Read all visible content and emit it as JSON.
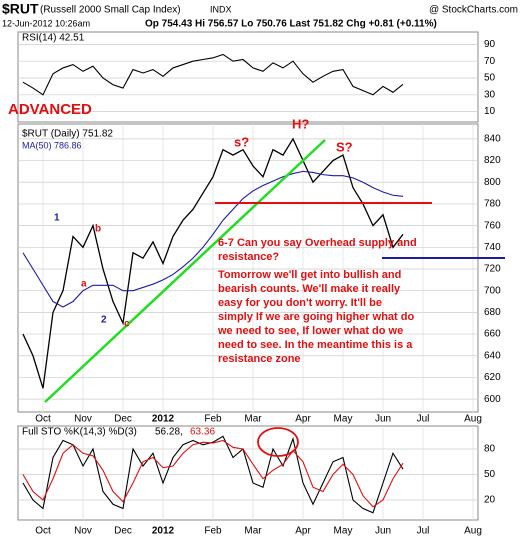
{
  "header": {
    "symbol": "$RUT",
    "name": "(Russell 2000 Small Cap Index)",
    "exchange": "INDX",
    "date": "12-Jun-2012 10:26am",
    "quote": "Op 754.43 Hi 756.57 Lo 750.76 Last 751.82 Chg +0.81 (+0.11%)",
    "source": "@ StockCharts.com"
  },
  "chart_data": [
    {
      "type": "line",
      "ylim": [
        0,
        100
      ],
      "yticks": [
        90,
        70,
        50,
        30,
        10
      ],
      "grid": true,
      "series": [
        {
          "name": "RSI(14) 42.51",
          "color": "#000000",
          "values": [
            45,
            38,
            30,
            55,
            62,
            66,
            58,
            64,
            50,
            42,
            38,
            60,
            56,
            60,
            52,
            62,
            66,
            70,
            72,
            74,
            78,
            70,
            72,
            62,
            58,
            68,
            62,
            70,
            55,
            45,
            52,
            58,
            60,
            40,
            35,
            30,
            40,
            33,
            42.51,
            null,
            null,
            null,
            null,
            null,
            null,
            null
          ]
        }
      ]
    },
    {
      "type": "line",
      "ylim": [
        590,
        850
      ],
      "yticks": [
        600,
        620,
        640,
        660,
        680,
        700,
        720,
        740,
        760,
        780,
        800,
        820,
        840
      ],
      "grid": true,
      "categories": [
        null,
        null,
        "Oct",
        null,
        null,
        null,
        "Nov",
        null,
        null,
        null,
        "Dec",
        null,
        null,
        null,
        "2012",
        null,
        null,
        null,
        null,
        "Feb",
        null,
        null,
        null,
        "Mar",
        null,
        null,
        null,
        null,
        "Apr",
        null,
        null,
        null,
        "May",
        null,
        null,
        null,
        "Jun",
        null,
        null,
        null,
        "Jul",
        null,
        null,
        null,
        null,
        "Aug"
      ],
      "series": [
        {
          "name": "$RUT (Daily) 751.82",
          "color": "#000000",
          "values": [
            660,
            640,
            610,
            680,
            700,
            750,
            740,
            760,
            720,
            690,
            670,
            735,
            730,
            745,
            725,
            750,
            765,
            775,
            790,
            805,
            830,
            825,
            830,
            815,
            805,
            830,
            825,
            840,
            820,
            800,
            810,
            820,
            825,
            795,
            780,
            760,
            770,
            740,
            752,
            null,
            null,
            null,
            null,
            null,
            null,
            null
          ]
        },
        {
          "name": "MA(50) 786.86",
          "color": "#1c1ca8",
          "values": [
            735,
            720,
            705,
            690,
            685,
            690,
            700,
            705,
            705,
            705,
            700,
            700,
            703,
            706,
            710,
            715,
            722,
            730,
            740,
            752,
            765,
            775,
            785,
            792,
            797,
            801,
            805,
            808,
            810,
            809,
            807,
            806,
            806,
            804,
            800,
            795,
            791,
            788,
            787,
            null,
            null,
            null,
            null,
            null,
            null,
            null
          ]
        }
      ],
      "annotations": [
        "ADVANCED",
        "s?",
        "H?",
        "S?",
        "1",
        "b",
        "a",
        "2",
        "c",
        "6-7 Can you say Overhead supply and resistance?",
        "Tomorrow we'll get into bullish and bearish counts. We'll make it really easy for you don't worry. It'll be simply If we are going higher what do we need to see, If lower what do we need to see. In the meantime this is a resistance zone"
      ]
    },
    {
      "type": "line",
      "ylim": [
        0,
        100
      ],
      "yticks": [
        80,
        50,
        20
      ],
      "grid": true,
      "label": "Full STO %K(14,3) %D(3)",
      "categories": [
        null,
        null,
        "Oct",
        null,
        null,
        null,
        "Nov",
        null,
        null,
        null,
        "Dec",
        null,
        null,
        null,
        "2012",
        null,
        null,
        null,
        null,
        "Feb",
        null,
        null,
        null,
        "Mar",
        null,
        null,
        null,
        null,
        "Apr",
        null,
        null,
        null,
        "May",
        null,
        null,
        null,
        "Jun",
        null,
        null,
        null,
        "Jul",
        null,
        null,
        null,
        null,
        "Aug"
      ],
      "series": [
        {
          "name": "56.28,",
          "color": "#000000",
          "values": [
            40,
            20,
            10,
            70,
            90,
            85,
            60,
            80,
            30,
            15,
            10,
            80,
            60,
            75,
            40,
            70,
            85,
            90,
            85,
            88,
            95,
            70,
            80,
            40,
            35,
            80,
            60,
            92,
            40,
            15,
            40,
            65,
            70,
            20,
            10,
            5,
            40,
            75,
            56.28,
            null,
            null,
            null,
            null,
            null,
            null,
            null
          ]
        },
        {
          "name": "63.36",
          "color": "#e01010",
          "values": [
            50,
            30,
            20,
            45,
            75,
            85,
            75,
            72,
            55,
            30,
            18,
            40,
            65,
            70,
            58,
            60,
            75,
            85,
            88,
            87,
            90,
            82,
            80,
            62,
            45,
            55,
            62,
            78,
            65,
            35,
            30,
            50,
            62,
            50,
            25,
            12,
            20,
            45,
            63.36,
            null,
            null,
            null,
            null,
            null,
            null,
            null
          ]
        }
      ]
    }
  ]
}
